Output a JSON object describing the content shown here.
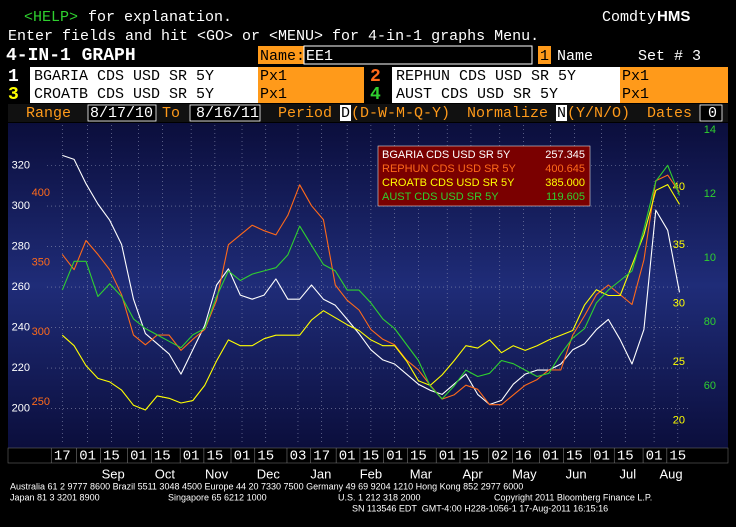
{
  "header": {
    "help_key": "<HELP>",
    "help_text": "for explanation.",
    "source": "Comdty",
    "brand": "HMS",
    "instruction": "Enter fields and hit <GO> or <MENU> for 4-in-1 graphs Menu.",
    "title": "4-IN-1 GRAPH",
    "name_label": "Name:",
    "name_value": "EE1",
    "set_key": "1",
    "set_name_label": "Name",
    "set_label": "Set # 3"
  },
  "securities": [
    {
      "number": "1",
      "ticker": "BGARIA CDS USD SR 5Y",
      "field": "Px1"
    },
    {
      "number": "2",
      "ticker": "REPHUN CDS USD SR 5Y",
      "field": "Px1"
    },
    {
      "number": "3",
      "ticker": "CROATB CDS USD SR 5Y",
      "field": "Px1"
    },
    {
      "number": "4",
      "ticker": "AUST CDS USD SR 5Y",
      "field": "Px1"
    }
  ],
  "settings": {
    "range_label": "Range",
    "start": "8/17/10",
    "to_label": "To",
    "end": "8/16/11",
    "period_label": "Period",
    "period": "D",
    "period_options": "(D-W-M-Q-Y)",
    "normalize_label": "Normalize",
    "normalize": "N",
    "normalize_options": "(Y/N/O)",
    "dates_label": "Dates",
    "dates": "0"
  },
  "chart_data": {
    "type": "line",
    "grid": true,
    "x": [
      "8/17/10",
      "8/24/10",
      "8/31/10",
      "9/7/10",
      "9/14/10",
      "9/21/10",
      "9/28/10",
      "10/5/10",
      "10/12/10",
      "10/19/10",
      "10/26/10",
      "11/2/10",
      "11/9/10",
      "11/16/10",
      "11/23/10",
      "11/30/10",
      "12/7/10",
      "12/14/10",
      "12/21/10",
      "12/28/10",
      "1/4/11",
      "1/11/11",
      "1/18/11",
      "1/25/11",
      "2/1/11",
      "2/8/11",
      "2/15/11",
      "2/22/11",
      "3/1/11",
      "3/8/11",
      "3/15/11",
      "3/22/11",
      "3/29/11",
      "4/5/11",
      "4/12/11",
      "4/19/11",
      "4/26/11",
      "5/3/11",
      "5/10/11",
      "5/17/11",
      "5/24/11",
      "5/31/11",
      "6/7/11",
      "6/14/11",
      "6/21/11",
      "6/28/11",
      "7/5/11",
      "7/12/11",
      "7/19/11",
      "7/26/11",
      "8/2/11",
      "8/9/11",
      "8/16/11"
    ],
    "xlim": [
      "8/8/10",
      "8/21/11"
    ],
    "xticks": [
      {
        "value": "8/17/10",
        "label": "17"
      },
      {
        "value": "9/1/10",
        "label": "01"
      },
      {
        "value": "9/15/10",
        "label": "15"
      },
      {
        "value": "10/1/10",
        "label": "01"
      },
      {
        "value": "10/15/10",
        "label": "15"
      },
      {
        "value": "11/1/10",
        "label": "01"
      },
      {
        "value": "11/15/10",
        "label": "15"
      },
      {
        "value": "12/1/10",
        "label": "01"
      },
      {
        "value": "12/15/10",
        "label": "15"
      },
      {
        "value": "1/3/11",
        "label": "03"
      },
      {
        "value": "1/17/11",
        "label": "17"
      },
      {
        "value": "2/1/11",
        "label": "01"
      },
      {
        "value": "2/15/11",
        "label": "15"
      },
      {
        "value": "3/1/11",
        "label": "01"
      },
      {
        "value": "3/15/11",
        "label": "15"
      },
      {
        "value": "4/1/11",
        "label": "01"
      },
      {
        "value": "4/15/11",
        "label": "15"
      },
      {
        "value": "5/2/11",
        "label": "02"
      },
      {
        "value": "5/16/11",
        "label": "16"
      },
      {
        "value": "6/1/11",
        "label": "01"
      },
      {
        "value": "6/15/11",
        "label": "15"
      },
      {
        "value": "7/1/11",
        "label": "01"
      },
      {
        "value": "7/15/11",
        "label": "15"
      },
      {
        "value": "8/1/11",
        "label": "01"
      },
      {
        "value": "8/15/11",
        "label": "15"
      }
    ],
    "months": [
      {
        "value": "9/1/10",
        "label": "Sep"
      },
      {
        "value": "10/1/10",
        "label": "Oct"
      },
      {
        "value": "11/1/10",
        "label": "Nov"
      },
      {
        "value": "12/1/10",
        "label": "Dec"
      },
      {
        "value": "1/1/11",
        "label": "Jan"
      },
      {
        "value": "2/1/11",
        "label": "Feb"
      },
      {
        "value": "3/1/11",
        "label": "Mar"
      },
      {
        "value": "4/1/11",
        "label": "Apr"
      },
      {
        "value": "5/1/11",
        "label": "May"
      },
      {
        "value": "6/1/11",
        "label": "Jun"
      },
      {
        "value": "7/1/11",
        "label": "Jul"
      },
      {
        "value": "8/1/11",
        "label": "Aug"
      }
    ],
    "series": [
      {
        "name": "BGARIA CDS USD SR 5Y",
        "color": "#ffffff",
        "last_label": "257.345",
        "ylim": [
          182,
          340
        ],
        "yticks": [
          200,
          220,
          240,
          260,
          280,
          300,
          320
        ],
        "values": [
          325,
          323,
          311,
          301,
          293,
          281,
          254,
          237,
          232,
          227,
          217,
          229,
          241,
          261,
          269,
          256,
          254,
          256,
          264,
          254,
          254,
          261,
          254,
          251,
          244,
          237,
          229,
          224,
          222,
          217,
          212,
          209,
          207,
          212,
          217,
          207,
          202,
          204,
          212,
          217,
          219,
          219,
          222,
          229,
          232,
          239,
          244,
          234,
          222,
          239,
          298,
          288,
          257.345
        ]
      },
      {
        "name": "REPHUN CDS USD SR 5Y",
        "color": "#ff6a1a",
        "last_label": "400.645",
        "ylim": [
          219,
          449
        ],
        "yticks": [
          250,
          300,
          350,
          400
        ],
        "values": [
          356,
          345,
          366,
          356,
          345,
          327,
          298,
          291,
          298,
          298,
          287,
          295,
          302,
          323,
          363,
          370,
          377,
          373,
          370,
          384,
          406,
          391,
          381,
          334,
          323,
          316,
          302,
          295,
          291,
          280,
          273,
          262,
          252,
          255,
          262,
          259,
          248,
          248,
          255,
          262,
          266,
          273,
          273,
          298,
          312,
          327,
          334,
          327,
          320,
          352,
          409,
          413,
          400.645
        ]
      },
      {
        "name": "CROATB CDS USD SR 5Y",
        "color": "#ffff00",
        "last_label": "385.000",
        "ylim": [
          179,
          453
        ],
        "yticks": [
          {
            "value": 200,
            "label": "20"
          },
          {
            "value": 250,
            "label": "25"
          },
          {
            "value": 300,
            "label": "30"
          },
          {
            "value": 350,
            "label": "35"
          },
          {
            "value": 400,
            "label": "40"
          }
        ],
        "values": [
          273,
          264,
          247,
          236,
          233,
          226,
          213,
          209,
          221,
          219,
          215,
          217,
          230,
          251,
          269,
          264,
          264,
          270,
          273,
          273,
          273,
          286,
          294,
          288,
          282,
          277,
          269,
          264,
          264,
          251,
          234,
          230,
          239,
          251,
          264,
          262,
          269,
          258,
          264,
          260,
          264,
          269,
          273,
          277,
          299,
          312,
          307,
          307,
          333,
          359,
          397,
          402,
          385
        ]
      },
      {
        "name": "AUST CDS USD SR 5Y",
        "color": "#2fd02f",
        "last_label": "119.605",
        "ylim": [
          41.6,
          141.6
        ],
        "yticks": [
          60,
          80,
          {
            "value": 100,
            "label": "10"
          },
          {
            "value": 120,
            "label": "12"
          },
          {
            "value": 140,
            "label": "14"
          }
        ],
        "values": [
          90,
          99,
          99,
          88,
          92,
          88,
          81,
          78,
          76,
          74,
          72,
          76,
          78,
          88,
          96,
          93,
          95,
          96,
          97,
          101,
          110,
          104,
          98,
          96,
          90,
          90,
          86,
          81,
          78,
          73,
          68,
          60,
          56,
          60,
          65,
          63,
          64,
          68,
          67,
          65,
          63,
          64,
          70,
          75,
          78,
          86,
          90,
          93,
          96,
          109,
          124,
          129,
          119.605
        ]
      }
    ]
  },
  "footer": {
    "line1": "Australia 61 2 9777 8600 Brazil 5511 3048 4500 Europe 44 20 7330 7500 Germany 49 69 9204 1210 Hong Kong 852 2977 6000",
    "japan": "Japan 81 3 3201 8900",
    "singapore": "Singapore 65 6212 1000",
    "us": "U.S. 1 212 318 2000",
    "copyright": "Copyright 2011 Bloomberg Finance L.P.",
    "session": "SN 113546 EDT  GMT-4:00 H228-1056-1 17-Aug-2011 16:15:16"
  }
}
